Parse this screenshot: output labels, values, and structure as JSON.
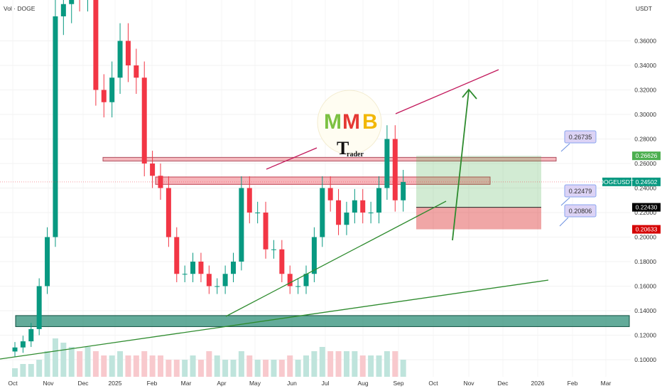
{
  "header": {
    "volume_label": "Vol · DOGE",
    "currency": "USDT"
  },
  "chart_data": {
    "type": "candlestick",
    "symbol": "DOGEUSDT",
    "y_scale": "linear",
    "ylim": [
      0.09,
      0.38
    ],
    "y_ticks": [
      "0.36000",
      "0.34000",
      "0.32000",
      "0.30000",
      "0.28000",
      "0.26000",
      "0.24000",
      "0.22000",
      "0.20000",
      "0.18000",
      "0.16000",
      "0.14000",
      "0.12000",
      "0.10000"
    ],
    "x_ticks": [
      "Oct",
      "Nov",
      "Dec",
      "2025",
      "Feb",
      "Mar",
      "Apr",
      "May",
      "Jun",
      "Jul",
      "Aug",
      "Sep",
      "Oct",
      "Nov",
      "Dec",
      "2026",
      "Feb",
      "Mar"
    ],
    "grid": true,
    "candle_interval": "weekly (approx.)",
    "start_date": "2024-10-01",
    "closes": [
      0.11,
      0.115,
      0.125,
      0.16,
      0.2,
      0.38,
      0.39,
      0.43,
      0.4,
      0.41,
      0.32,
      0.31,
      0.33,
      0.36,
      0.34,
      0.33,
      0.26,
      0.25,
      0.24,
      0.2,
      0.17,
      0.17,
      0.18,
      0.17,
      0.16,
      0.16,
      0.17,
      0.18,
      0.24,
      0.22,
      0.22,
      0.19,
      0.19,
      0.17,
      0.16,
      0.16,
      0.17,
      0.2,
      0.24,
      0.23,
      0.21,
      0.22,
      0.23,
      0.22,
      0.22,
      0.24,
      0.28,
      0.23,
      0.245
    ],
    "volume_relative": [
      2,
      3,
      3,
      4,
      6,
      9,
      8,
      7,
      6,
      7,
      6,
      5,
      5,
      6,
      5,
      5,
      6,
      5,
      5,
      4,
      4,
      4,
      5,
      4,
      6,
      5,
      4,
      4,
      6,
      5,
      4,
      4,
      4,
      4,
      5,
      4,
      5,
      6,
      7,
      6,
      6,
      6,
      6,
      5,
      5,
      5,
      6,
      6,
      4
    ],
    "current_price": {
      "label": "DOGEUSDT",
      "value": "0.24502"
    },
    "position": {
      "target": "0.26626",
      "entry": "0.22430",
      "stop": "0.20633"
    },
    "price_callouts": [
      "0.26735",
      "0.22479",
      "0.20806"
    ],
    "zones": [
      {
        "name": "resistance",
        "low": 0.262,
        "high": 0.265
      },
      {
        "name": "mid",
        "low": 0.243,
        "high": 0.249
      },
      {
        "name": "support",
        "low": 0.127,
        "high": 0.136
      }
    ],
    "colors": {
      "up": "#089981",
      "down": "#f23645",
      "target": "#4caf50",
      "stop": "#d50000",
      "trend_green": "#2e8b2e",
      "trend_red": "#c2185b"
    }
  },
  "logo": {
    "text": "MMB",
    "subtext": "Trader"
  }
}
